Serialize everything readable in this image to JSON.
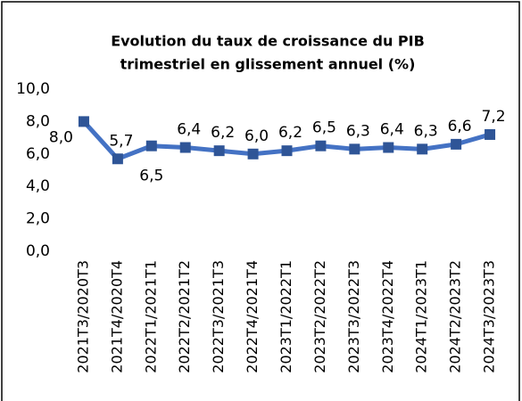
{
  "chart_data": {
    "type": "line",
    "title": [
      "Evolution du taux de croissance du PIB",
      "trimestriel en glissement annuel (%)"
    ],
    "categories": [
      "2021T3/2020T3",
      "2021T4/2020T4",
      "2022T1/2021T1",
      "2022T2/2021T2",
      "2022T3/2021T3",
      "2022T4/2021T4",
      "2023T1/2022T1",
      "2023T2/2022T2",
      "2023T3/2022T3",
      "2023T4/2022T4",
      "2024T1/2023T1",
      "2024T2/2023T2",
      "2024T3/2023T3"
    ],
    "values": [
      8.0,
      5.7,
      6.5,
      6.4,
      6.2,
      6.0,
      6.2,
      6.5,
      6.3,
      6.4,
      6.3,
      6.6,
      7.2
    ],
    "value_labels": [
      "8,0",
      "5,7",
      "6,5",
      "6,4",
      "6,2",
      "6,0",
      "6,2",
      "6,5",
      "6,3",
      "6,4",
      "6,3",
      "6,6",
      "7,2"
    ],
    "color": "#4472c4",
    "marker_color": "#2f5597",
    "ylim": [
      0,
      10
    ],
    "yticks": [
      {
        "value": 0,
        "label": "0,0"
      },
      {
        "value": 2,
        "label": "2,0"
      },
      {
        "value": 4,
        "label": "4,0"
      },
      {
        "value": 6,
        "label": "6,0"
      },
      {
        "value": 8,
        "label": "8,0"
      },
      {
        "value": 10,
        "label": "10,0"
      }
    ],
    "grid": false
  }
}
